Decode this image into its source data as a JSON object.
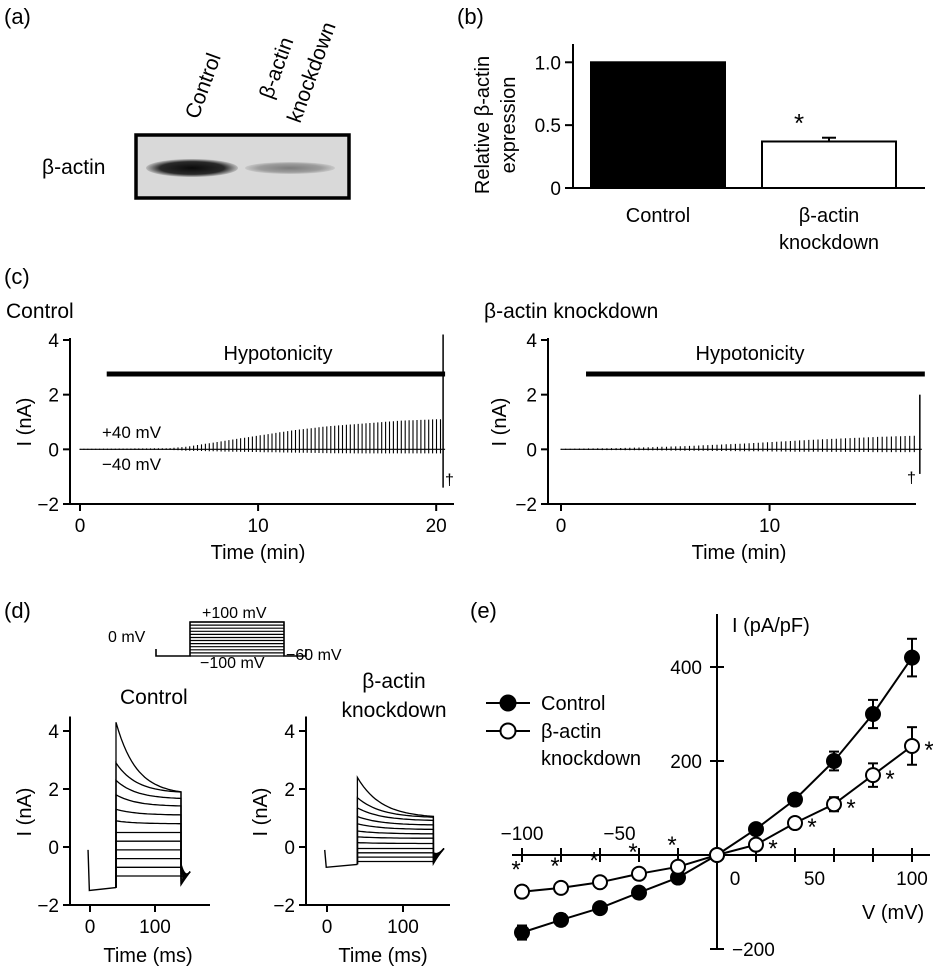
{
  "panel_a": {
    "label": "(a)",
    "lanes": [
      "Control",
      "β-actin",
      "knockdown"
    ],
    "band_label": "β-actin"
  },
  "panel_b": {
    "label": "(b)",
    "ylabel_line1": "Relative β-actin",
    "ylabel_line2": "expression",
    "cat_control": "Control",
    "cat_kd_line1": "β-actin",
    "cat_kd_line2": "knockdown",
    "star": "*"
  },
  "panel_c": {
    "label": "(c)",
    "left_title": "Control",
    "right_title": "β-actin knockdown",
    "bar_text": "Hypotonicity",
    "ylabel": "I (nA)",
    "xlabel": "Time (min)",
    "pos_label": "+40 mV",
    "neg_label": "−40 mV",
    "dagger": "†"
  },
  "panel_d": {
    "label": "(d)",
    "protocol_0mv": "0 mV",
    "protocol_top": "+100 mV",
    "protocol_bottom": "−100 mV",
    "protocol_hold": "−60 mV",
    "left_title": "Control",
    "right_title_line1": "β-actin",
    "right_title_line2": "knockdown",
    "ylabel": "I (nA)",
    "xlabel": "Time (ms)"
  },
  "panel_e": {
    "label": "(e)",
    "ylabel": "I (pA/pF)",
    "xlabel": "V (mV)",
    "legend_control": "Control",
    "legend_kd_line1": "β-actin",
    "legend_kd_line2": "knockdown",
    "star": "*"
  },
  "chart_data": [
    {
      "type": "bar",
      "panel": "b",
      "categories": [
        "Control",
        "β-actin knockdown"
      ],
      "values": [
        1.0,
        0.37
      ],
      "errors": [
        0,
        0.03
      ],
      "fill_colors": [
        "#000000",
        "#ffffff"
      ],
      "ylabel": "Relative β-actin expression",
      "ylim": [
        0,
        1.05
      ],
      "yticks": [
        0,
        0.5,
        1.0
      ],
      "ytick_labels": [
        "0",
        "0.5",
        "1.0"
      ],
      "significant": [
        false,
        true
      ]
    },
    {
      "type": "line",
      "panel": "c-left",
      "title": "Control",
      "xlabel": "Time (min)",
      "ylabel": "I (nA)",
      "xlim": [
        0,
        21
      ],
      "ylim": [
        -2,
        4
      ],
      "xticks": [
        0,
        10,
        20
      ],
      "yticks": [
        -2,
        0,
        2,
        4
      ],
      "hypotonicity_start_min": 1.5,
      "hypotonicity_end_min": 20.5,
      "envelope": {
        "time_min": [
          0,
          5,
          6,
          8,
          10,
          12,
          14,
          16,
          18,
          20
        ],
        "outward_nA": [
          0.02,
          0.04,
          0.1,
          0.3,
          0.5,
          0.7,
          0.85,
          0.95,
          1.05,
          1.1
        ],
        "inward_nA": [
          -0.02,
          -0.02,
          -0.05,
          -0.08,
          -0.1,
          -0.12,
          -0.14,
          -0.15,
          -0.15,
          -0.15
        ]
      },
      "final_ramp_nA": [
        -1.4,
        4.2
      ]
    },
    {
      "type": "line",
      "panel": "c-right",
      "title": "β-actin knockdown",
      "xlabel": "Time (min)",
      "ylabel": "I (nA)",
      "xlim": [
        0,
        17.5
      ],
      "ylim": [
        -2,
        4
      ],
      "xticks": [
        0,
        10
      ],
      "yticks": [
        -2,
        0,
        2,
        4
      ],
      "hypotonicity_start_min": 1.2,
      "hypotonicity_end_min": 17.3,
      "envelope": {
        "time_min": [
          0,
          3,
          6,
          9,
          12,
          15,
          17
        ],
        "outward_nA": [
          0.02,
          0.05,
          0.12,
          0.22,
          0.35,
          0.45,
          0.5
        ],
        "inward_nA": [
          -0.02,
          -0.03,
          -0.05,
          -0.07,
          -0.09,
          -0.1,
          -0.1
        ]
      },
      "final_ramp_nA": [
        -0.9,
        2.0
      ]
    },
    {
      "type": "line",
      "panel": "d-left",
      "title": "Control",
      "xlabel": "Time (ms)",
      "ylabel": "I (nA)",
      "xlim": [
        -5,
        165
      ],
      "ylim": [
        -2,
        4.5
      ],
      "xticks": [
        0,
        100
      ],
      "yticks": [
        -2,
        0,
        2,
        4
      ],
      "pulse_ms": [
        40,
        140
      ],
      "baseline_nA": -1.4,
      "steps_initial_nA": [
        4.3,
        2.9,
        2.3,
        1.8,
        1.3,
        0.9,
        0.5,
        0.2,
        -0.1,
        -0.4,
        -0.7,
        -1.0
      ],
      "steps_final_nA": [
        1.8,
        1.85,
        1.65,
        1.4,
        1.1,
        0.8,
        0.5,
        0.2,
        -0.1,
        -0.4,
        -0.7,
        -1.0
      ]
    },
    {
      "type": "line",
      "panel": "d-right",
      "title": "β-actin knockdown",
      "xlabel": "Time (ms)",
      "ylabel": "I (nA)",
      "xlim": [
        -5,
        165
      ],
      "ylim": [
        -2,
        4.5
      ],
      "xticks": [
        0,
        100
      ],
      "yticks": [
        -2,
        0,
        2,
        4
      ],
      "pulse_ms": [
        40,
        140
      ],
      "baseline_nA": -0.6,
      "steps_initial_nA": [
        2.4,
        1.7,
        1.35,
        1.05,
        0.8,
        0.55,
        0.35,
        0.15,
        -0.05,
        -0.2,
        -0.35,
        -0.5
      ],
      "steps_final_nA": [
        1.0,
        1.0,
        0.9,
        0.75,
        0.6,
        0.45,
        0.3,
        0.12,
        -0.05,
        -0.2,
        -0.35,
        -0.5
      ]
    },
    {
      "type": "scatter",
      "panel": "e",
      "xlabel": "V (mV)",
      "ylabel": "I (pA/pF)",
      "xlim": [
        -100,
        100
      ],
      "ylim": [
        -200,
        450
      ],
      "xticks": [
        -100,
        -50,
        0,
        50,
        100
      ],
      "yticks": [
        -200,
        200,
        400
      ],
      "series": [
        {
          "name": "Control",
          "marker": "filled",
          "x": [
            -100,
            -80,
            -60,
            -40,
            -20,
            0,
            20,
            40,
            60,
            80,
            100
          ],
          "y": [
            -165,
            -138,
            -113,
            -80,
            -48,
            0,
            55,
            118,
            200,
            300,
            420
          ],
          "err": [
            15,
            12,
            10,
            8,
            6,
            4,
            8,
            12,
            20,
            30,
            40
          ]
        },
        {
          "name": "β-actin knockdown",
          "marker": "open",
          "x": [
            -100,
            -80,
            -60,
            -40,
            -20,
            0,
            20,
            40,
            60,
            80,
            100
          ],
          "y": [
            -78,
            -70,
            -58,
            -40,
            -25,
            0,
            22,
            68,
            108,
            170,
            232
          ],
          "err": [
            12,
            10,
            8,
            6,
            5,
            4,
            6,
            10,
            15,
            25,
            40
          ]
        }
      ],
      "significant_x": [
        -100,
        -80,
        -60,
        -40,
        -20,
        20,
        40,
        60,
        80,
        100
      ]
    }
  ]
}
